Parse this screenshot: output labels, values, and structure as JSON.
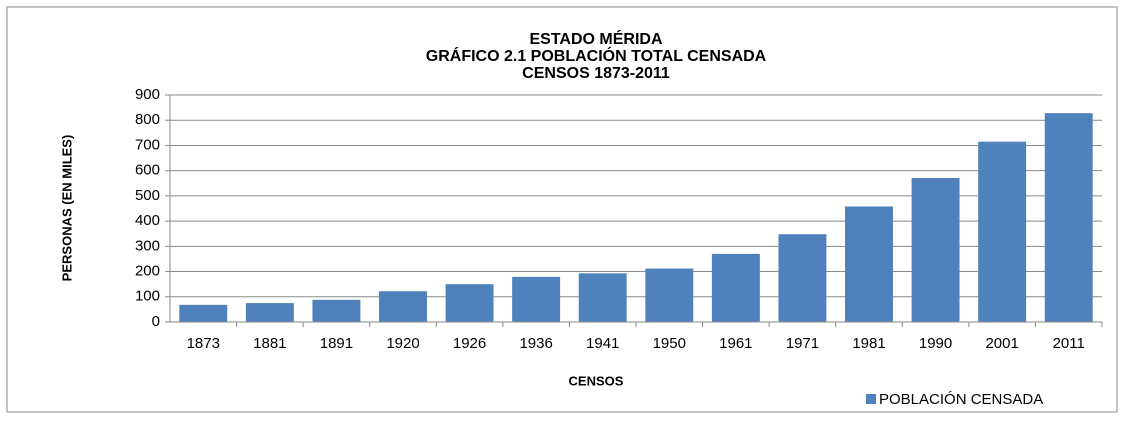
{
  "chart_data": {
    "type": "bar",
    "title": [
      "ESTADO MÉRIDA",
      "GRÁFICO 2.1 POBLACIÓN  TOTAL CENSADA",
      "CENSOS 1873-2011"
    ],
    "ylabel": "PERSONAS (EN MILES)",
    "xlabel": "CENSOS",
    "categories": [
      "1873",
      "1881",
      "1891",
      "1920",
      "1926",
      "1936",
      "1941",
      "1950",
      "1961",
      "1971",
      "1981",
      "1990",
      "2001",
      "2011"
    ],
    "series": [
      {
        "name": "POBLACIÓN CENSADA",
        "color": "#4f81bd",
        "values": [
          68,
          75,
          88,
          122,
          150,
          179,
          193,
          212,
          270,
          348,
          458,
          571,
          715,
          828
        ]
      }
    ],
    "ylim": [
      0,
      900
    ],
    "yticks": [
      0,
      100,
      200,
      300,
      400,
      500,
      600,
      700,
      800,
      900
    ],
    "grid": true,
    "legend": "bottom-right"
  }
}
